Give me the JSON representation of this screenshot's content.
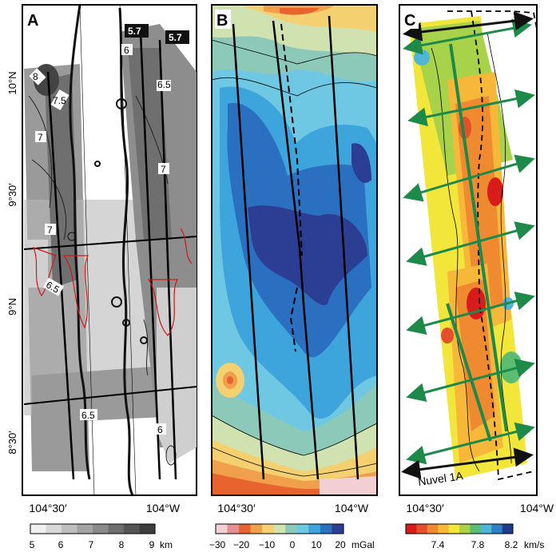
{
  "panels": [
    {
      "id": "A",
      "letter": "A",
      "contour_labels": [
        "8",
        "7.5",
        "7",
        "7",
        "6.5",
        "7",
        "6.5",
        "6.5",
        "6",
        "6"
      ],
      "boxed_labels": [
        "5.7",
        "5.7"
      ],
      "colorbar": {
        "ticks": [
          "5",
          "6",
          "7",
          "8",
          "9"
        ],
        "unit": "km"
      }
    },
    {
      "id": "B",
      "letter": "B",
      "colorbar": {
        "ticks": [
          "−30",
          "−20",
          "−10",
          "0",
          "10",
          "20"
        ],
        "unit": "mGal"
      }
    },
    {
      "id": "C",
      "letter": "C",
      "arrow_label": "Nuvel 1A",
      "colorbar": {
        "ticks": [
          "7.4",
          "7.8",
          "8.2"
        ],
        "unit": "km/s"
      }
    }
  ],
  "latitude_labels": [
    "10°N",
    "9°30′",
    "9°N",
    "8°30′"
  ],
  "longitude_labels": {
    "A": [
      "104°30′",
      "104°W"
    ],
    "B": [
      "104°30′",
      "104°W"
    ],
    "C": [
      "104°30′",
      "104°W"
    ]
  },
  "colors": {
    "gray_scale": [
      "#f0f0f0",
      "#d8d8d8",
      "#bdbdbd",
      "#a3a3a3",
      "#8a8a8a",
      "#6e6e6e",
      "#555555",
      "#3d3d3d"
    ],
    "gravity_scale": [
      "#f2cfd2",
      "#e38f8f",
      "#e8642f",
      "#f0a04a",
      "#f5d070",
      "#cfe2b0",
      "#8cc9b9",
      "#6ec8e4",
      "#3ea4dc",
      "#2a6fc0",
      "#2c3d94"
    ],
    "velocity_scale": [
      "#d81c1c",
      "#e5502a",
      "#f08a30",
      "#f7b83a",
      "#f3e63a",
      "#a8d24a",
      "#5bbd72",
      "#4fb6d8",
      "#2d7fc6",
      "#203a8c"
    ],
    "arrow_green": "#1e8a4a",
    "contour_red": "#d01818"
  }
}
